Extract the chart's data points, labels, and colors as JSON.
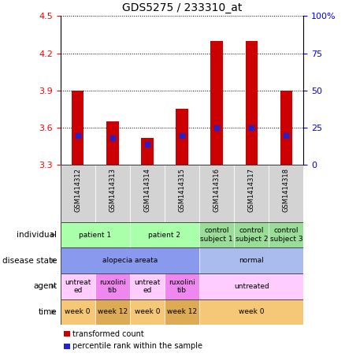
{
  "title": "GDS5275 / 233310_at",
  "samples": [
    "GSM1414312",
    "GSM1414313",
    "GSM1414314",
    "GSM1414315",
    "GSM1414316",
    "GSM1414317",
    "GSM1414318"
  ],
  "bar_values": [
    3.9,
    3.65,
    3.52,
    3.75,
    4.3,
    4.3,
    3.9
  ],
  "percentile_values": [
    20,
    18,
    14,
    20,
    25,
    25,
    20
  ],
  "ylim": [
    3.3,
    4.5
  ],
  "ylim2": [
    0,
    100
  ],
  "yticks": [
    3.3,
    3.6,
    3.9,
    4.2,
    4.5
  ],
  "y2ticks": [
    0,
    25,
    50,
    75,
    100
  ],
  "y2labels": [
    "0",
    "25",
    "50",
    "75",
    "100%"
  ],
  "bar_color": "#cc0000",
  "percentile_color": "#2222cc",
  "plot_bg": "#ffffff",
  "sample_bg": "#d3d3d3",
  "row_labels": [
    "individual",
    "disease state",
    "agent",
    "time"
  ],
  "individual_spans": [
    [
      0,
      2,
      "patient 1"
    ],
    [
      2,
      4,
      "patient 2"
    ],
    [
      4,
      5,
      "control\nsubject 1"
    ],
    [
      5,
      6,
      "control\nsubject 2"
    ],
    [
      6,
      7,
      "control\nsubject 3"
    ]
  ],
  "individual_colors": [
    "#aaffaa",
    "#aaffaa",
    "#99dd99",
    "#99dd99",
    "#99dd99"
  ],
  "disease_spans": [
    [
      0,
      4,
      "alopecia areata"
    ],
    [
      4,
      7,
      "normal"
    ]
  ],
  "disease_colors": [
    "#8899ee",
    "#aabbee"
  ],
  "agent_spans": [
    [
      0,
      1,
      "untreat\ned"
    ],
    [
      1,
      2,
      "ruxolini\ntib"
    ],
    [
      2,
      3,
      "untreat\ned"
    ],
    [
      3,
      4,
      "ruxolini\ntib"
    ],
    [
      4,
      7,
      "untreated"
    ]
  ],
  "agent_colors": [
    "#ffccff",
    "#ee88ee",
    "#ffccff",
    "#ee88ee",
    "#ffccff"
  ],
  "time_spans": [
    [
      0,
      1,
      "week 0"
    ],
    [
      1,
      2,
      "week 12"
    ],
    [
      2,
      3,
      "week 0"
    ],
    [
      3,
      4,
      "week 12"
    ],
    [
      4,
      7,
      "week 0"
    ]
  ],
  "time_colors": [
    "#f5c878",
    "#ddaa55",
    "#f5c878",
    "#ddaa55",
    "#f5c878"
  ],
  "legend_items": [
    [
      "transformed count",
      "#cc0000"
    ],
    [
      "percentile rank within the sample",
      "#2222cc"
    ]
  ]
}
